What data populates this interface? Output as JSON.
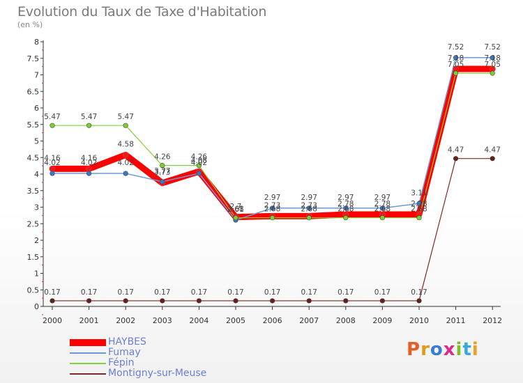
{
  "title": "Evolution du Taux de Taxe d'Habitation",
  "unit": "(en %)",
  "logo": "Proxiti",
  "chart_data": {
    "type": "line",
    "title": "Evolution du Taux de Taxe d'Habitation",
    "subtitle": "(en %)",
    "categories": [
      "2000",
      "2001",
      "2002",
      "2003",
      "2004",
      "2005",
      "2006",
      "2007",
      "2008",
      "2009",
      "2010",
      "2011",
      "2012"
    ],
    "ylim": [
      0,
      8
    ],
    "yticks": [
      "0",
      "0.5",
      "1",
      "1.5",
      "2",
      "2.5",
      "3",
      "3.5",
      "4",
      "4.5",
      "5",
      "5.5",
      "6",
      "6.5",
      "7",
      "7.5",
      "8"
    ],
    "grid": false,
    "legend_position": "bottom-left",
    "series": [
      {
        "name": "HAYBES",
        "color": "#ff0000",
        "values": [
          4.16,
          4.16,
          4.58,
          3.73,
          4.08,
          2.7,
          2.73,
          2.73,
          2.78,
          2.78,
          2.78,
          7.18,
          7.18
        ],
        "labels": [
          "4.16",
          "4.16",
          "4.58",
          "3.73",
          "4.08",
          "2.7",
          "2.73",
          "2.73",
          "2.78",
          "2.78",
          "2.78",
          "7.18",
          "7.18"
        ]
      },
      {
        "name": "Fumay",
        "color": "#6a9bd8",
        "values": [
          4.02,
          4.02,
          4.02,
          3.77,
          4.02,
          2.61,
          2.97,
          2.97,
          2.97,
          2.97,
          3.11,
          7.52,
          7.52
        ],
        "labels": [
          "4.02",
          "4.02",
          "4.02",
          "3.77",
          "4.02",
          "2.61",
          "2.97",
          "2.97",
          "2.97",
          "2.97",
          "3.11",
          "7.52",
          "7.52"
        ]
      },
      {
        "name": "Fépin",
        "color": "#80d040",
        "values": [
          5.47,
          5.47,
          5.47,
          4.26,
          4.26,
          2.68,
          2.68,
          2.68,
          2.68,
          2.68,
          2.68,
          7.05,
          7.05
        ],
        "labels": [
          "5.47",
          "5.47",
          "5.47",
          "4.26",
          "4.26",
          "2.68",
          "2.68",
          "2.68",
          "2.68",
          "2.68",
          "2.68",
          "7.05",
          "7.05"
        ]
      },
      {
        "name": "Montigny-sur-Meuse",
        "color": "#7a2a22",
        "values": [
          0.17,
          0.17,
          0.17,
          0.17,
          0.17,
          0.17,
          0.17,
          0.17,
          0.17,
          0.17,
          0.17,
          4.47,
          4.47
        ],
        "labels": [
          "0.17",
          "0.17",
          "0.17",
          "0.17",
          "0.17",
          "0.17",
          "0.17",
          "0.17",
          "0.17",
          "0.17",
          "0.17",
          "4.47",
          "4.47"
        ]
      }
    ]
  }
}
